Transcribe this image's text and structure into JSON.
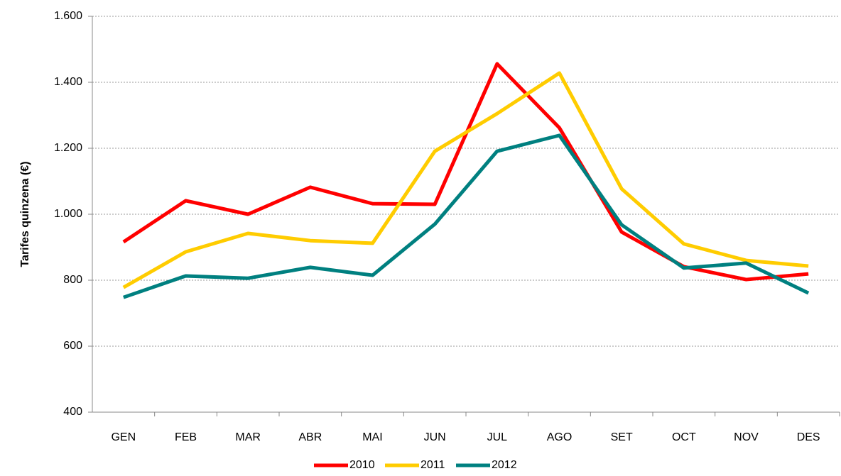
{
  "chart_data": {
    "type": "line",
    "y_label": "Tarifes quinzena (€)",
    "categories": [
      "GEN",
      "FEB",
      "MAR",
      "ABR",
      "MAI",
      "JUN",
      "JUL",
      "AGO",
      "SET",
      "OCT",
      "NOV",
      "DES"
    ],
    "series": [
      {
        "name": "2010",
        "color": "#ff0000",
        "values": [
          916,
          1041,
          1000,
          1082,
          1032,
          1030,
          1456,
          1262,
          946,
          841,
          802,
          819
        ]
      },
      {
        "name": "2011",
        "color": "#ffcc00",
        "values": [
          778,
          886,
          942,
          920,
          912,
          1191,
          1305,
          1428,
          1077,
          910,
          860,
          843
        ]
      },
      {
        "name": "2012",
        "color": "#008080",
        "values": [
          748,
          813,
          806,
          839,
          815,
          970,
          1191,
          1239,
          968,
          837,
          852,
          761
        ]
      }
    ],
    "ylim": [
      400,
      1600
    ],
    "yticks": [
      400,
      600,
      800,
      {
        "value": 1000,
        "label": "1.000"
      },
      {
        "value": 1200,
        "label": "1.200"
      },
      {
        "value": 1400,
        "label": "1.400"
      },
      {
        "value": 1600,
        "label": "1.600"
      }
    ],
    "grid": true,
    "legend": "bottom"
  }
}
